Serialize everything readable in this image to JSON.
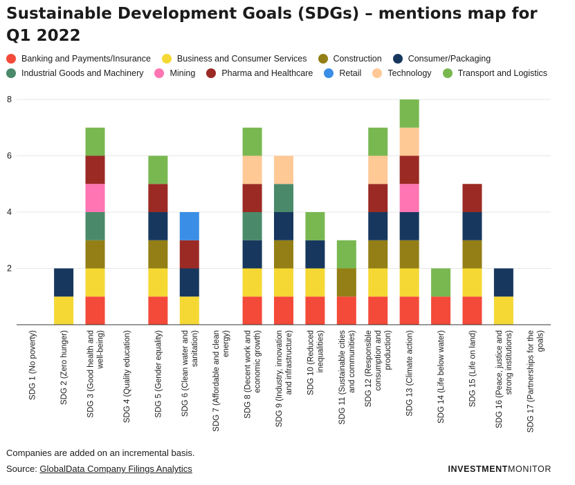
{
  "title": "Sustainable Development Goals (SDGs) – mentions map for Q1 2022",
  "legend": {
    "row1": [
      {
        "label": "Banking and Payments/Insurance",
        "color": "#f44a3a"
      },
      {
        "label": "Business and Consumer Services",
        "color": "#f5d834"
      },
      {
        "label": "Construction",
        "color": "#937f16"
      },
      {
        "label": "Consumer/Packaging",
        "color": "#17375e"
      }
    ],
    "row2": [
      {
        "label": "Industrial Goods and Machinery",
        "color": "#4a8a6b"
      },
      {
        "label": "Mining",
        "color": "#ff75b3"
      },
      {
        "label": "Pharma and Healthcare",
        "color": "#9b2a25"
      },
      {
        "label": "Retail",
        "color": "#3a8ee6"
      },
      {
        "label": "Technology",
        "color": "#ffc996"
      },
      {
        "label": "Transport and Logistics",
        "color": "#79b851"
      }
    ]
  },
  "chart_data": {
    "type": "bar",
    "stacked": true,
    "ylim": [
      0,
      8
    ],
    "yticks": [
      "2",
      "4",
      "6",
      "8"
    ],
    "grid": true,
    "legend_position": "top",
    "categories": [
      [
        "SDG 1 (No poverty)"
      ],
      [
        "SDG 2 (Zero hunger)"
      ],
      [
        "SDG 3 (Good health and",
        "well-being)"
      ],
      [
        "SDG 4 (Quality education)"
      ],
      [
        "SDG 5 (Gender equality)"
      ],
      [
        "SDG 6 (Clean water and",
        "sanitation)"
      ],
      [
        "SDG 7 (Affordable and clean",
        "energy)"
      ],
      [
        "SDG 8 (Decent work and",
        "economic growth)"
      ],
      [
        "SDG 9 (Industry, innovation",
        "and infrastructure)"
      ],
      [
        "SDG 10 (Reduced",
        "inequalities)"
      ],
      [
        "SDG 11 (Sustainable cities",
        "and communities)"
      ],
      [
        "SDG 12 (Responsible",
        "consumption and",
        "production)"
      ],
      [
        "SDG 13 (Climate action)"
      ],
      [
        "SDG 14 (Life below water)"
      ],
      [
        "SDG 15 (Life on land)"
      ],
      [
        "SDG 16 (Peace, justice and",
        "strong institutions)"
      ],
      [
        "SDG 17 (Partnerships for the",
        "goals)"
      ]
    ],
    "series": [
      {
        "name": "Banking and Payments/Insurance",
        "color": "#f44a3a",
        "values": [
          0,
          0,
          1,
          0,
          1,
          0,
          0,
          1,
          1,
          1,
          1,
          1,
          1,
          1,
          1,
          0,
          0
        ]
      },
      {
        "name": "Business and Consumer Services",
        "color": "#f5d834",
        "values": [
          0,
          1,
          1,
          0,
          1,
          1,
          0,
          1,
          1,
          1,
          0,
          1,
          1,
          0,
          1,
          1,
          0
        ]
      },
      {
        "name": "Construction",
        "color": "#937f16",
        "values": [
          0,
          0,
          1,
          0,
          1,
          0,
          0,
          0,
          1,
          0,
          1,
          1,
          1,
          0,
          1,
          0,
          0
        ]
      },
      {
        "name": "Consumer/Packaging",
        "color": "#17375e",
        "values": [
          0,
          1,
          0,
          0,
          1,
          1,
          0,
          1,
          1,
          1,
          0,
          1,
          1,
          0,
          1,
          1,
          0
        ]
      },
      {
        "name": "Industrial Goods and Machinery",
        "color": "#4a8a6b",
        "values": [
          0,
          0,
          1,
          0,
          0,
          0,
          0,
          1,
          1,
          0,
          0,
          0,
          0,
          0,
          0,
          0,
          0
        ]
      },
      {
        "name": "Mining",
        "color": "#ff75b3",
        "values": [
          0,
          0,
          1,
          0,
          0,
          0,
          0,
          0,
          0,
          0,
          0,
          0,
          1,
          0,
          0,
          0,
          0
        ]
      },
      {
        "name": "Pharma and Healthcare",
        "color": "#9b2a25",
        "values": [
          0,
          0,
          1,
          0,
          1,
          1,
          0,
          1,
          0,
          0,
          0,
          1,
          1,
          0,
          1,
          0,
          0
        ]
      },
      {
        "name": "Retail",
        "color": "#3a8ee6",
        "values": [
          0,
          0,
          0,
          0,
          0,
          1,
          0,
          0,
          0,
          0,
          0,
          0,
          0,
          0,
          0,
          0,
          0
        ]
      },
      {
        "name": "Technology",
        "color": "#ffc996",
        "values": [
          0,
          0,
          0,
          0,
          0,
          0,
          0,
          1,
          1,
          0,
          0,
          1,
          1,
          0,
          0,
          0,
          0
        ]
      },
      {
        "name": "Transport and Logistics",
        "color": "#79b851",
        "values": [
          0,
          0,
          1,
          0,
          1,
          0,
          0,
          1,
          0,
          1,
          1,
          1,
          1,
          1,
          0,
          0,
          0
        ]
      }
    ]
  },
  "footnote": "Companies are added on an incremental basis.",
  "source": {
    "prefix": "Source: ",
    "link": "GlobalData Company Filings Analytics"
  },
  "brand": {
    "part1": "INVESTMENT",
    "part2": "MONITOR"
  }
}
